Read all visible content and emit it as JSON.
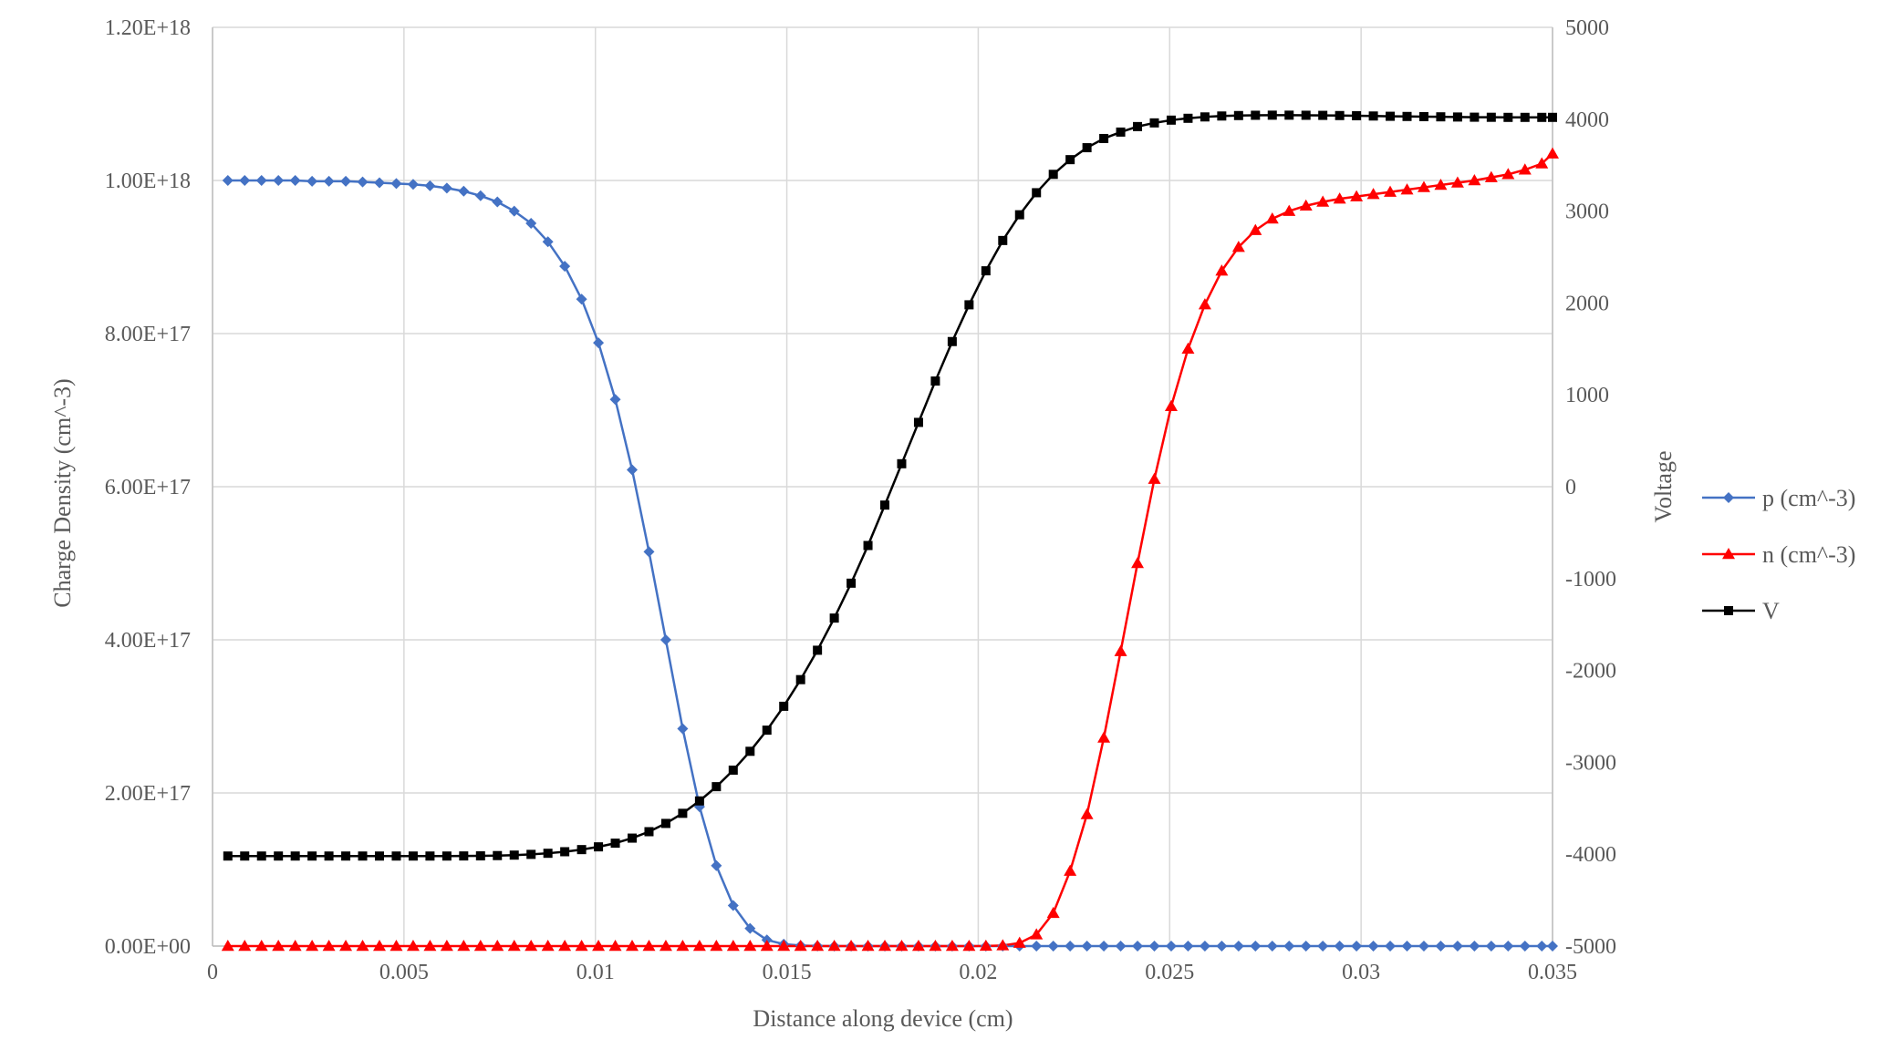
{
  "chart_data": {
    "type": "line",
    "title": "",
    "xlabel": "Distance along device (cm)",
    "ylabel": "Charge Density (cm^-3)",
    "y2label": "Voltage",
    "xlim": [
      0,
      0.035
    ],
    "ylim": [
      0,
      1.2e+18
    ],
    "y2lim": [
      -5000,
      5000
    ],
    "x_ticks": [
      0,
      0.005,
      0.01,
      0.015,
      0.02,
      0.025,
      0.03,
      0.035
    ],
    "x_tick_labels": [
      "0",
      "0.005",
      "0.01",
      "0.015",
      "0.02",
      "0.025",
      "0.03",
      "0.035"
    ],
    "y_ticks": [
      0,
      2e+17,
      4e+17,
      6e+17,
      8e+17,
      1e+18,
      1.2e+18
    ],
    "y_tick_labels": [
      "0.00E+00",
      "2.00E+17",
      "4.00E+17",
      "6.00E+17",
      "8.00E+17",
      "1.00E+18",
      "1.20E+18"
    ],
    "y2_ticks": [
      -5000,
      -4000,
      -3000,
      -2000,
      -1000,
      0,
      1000,
      2000,
      3000,
      4000,
      5000
    ],
    "y2_tick_labels": [
      "-5000",
      "-4000",
      "-3000",
      "-2000",
      "-1000",
      "0",
      "1000",
      "2000",
      "3000",
      "4000",
      "5000"
    ],
    "grid": true,
    "legend_position": "right",
    "x": [
      0.0004,
      0.00084,
      0.00128,
      0.00172,
      0.00216,
      0.0026,
      0.00304,
      0.00348,
      0.00392,
      0.00436,
      0.0048,
      0.00524,
      0.00568,
      0.00612,
      0.00656,
      0.007,
      0.00744,
      0.00788,
      0.00832,
      0.00876,
      0.0092,
      0.00964,
      0.01008,
      0.01052,
      0.01096,
      0.0114,
      0.01184,
      0.01228,
      0.01272,
      0.01316,
      0.0136,
      0.01404,
      0.01448,
      0.01492,
      0.01536,
      0.0158,
      0.01624,
      0.01668,
      0.01712,
      0.01756,
      0.018,
      0.01844,
      0.01888,
      0.01932,
      0.01976,
      0.0202,
      0.02064,
      0.02108,
      0.02152,
      0.02196,
      0.0224,
      0.02284,
      0.02328,
      0.02372,
      0.02416,
      0.0246,
      0.02504,
      0.02548,
      0.02592,
      0.02636,
      0.0268,
      0.02724,
      0.02768,
      0.02812,
      0.02856,
      0.029,
      0.02944,
      0.02988,
      0.03032,
      0.03076,
      0.0312,
      0.03164,
      0.03208,
      0.03252,
      0.03296,
      0.0334,
      0.03384,
      0.03428,
      0.03472,
      0.035
    ],
    "series": [
      {
        "name": "p (cm^-3)",
        "axis": "left",
        "color": "#4472c4",
        "marker": "diamond",
        "values": [
          1e+18,
          1e+18,
          1e+18,
          1e+18,
          1e+18,
          9.99e+17,
          9.99e+17,
          9.99e+17,
          9.98e+17,
          9.97e+17,
          9.96e+17,
          9.95e+17,
          9.93e+17,
          9.9e+17,
          9.86e+17,
          9.8e+17,
          9.72e+17,
          9.6e+17,
          9.44e+17,
          9.2e+17,
          8.88e+17,
          8.45e+17,
          7.88e+17,
          7.14e+17,
          6.22e+17,
          5.15e+17,
          4e+17,
          2.84e+17,
          1.82e+17,
          1.05e+17,
          5.3e+16,
          2.3e+16,
          8000000000000000.0,
          2500000000000000.0,
          700000000000000.0,
          200000000000000.0,
          0,
          0,
          0,
          0,
          0,
          0,
          0,
          0,
          0,
          0,
          0,
          0,
          0,
          0,
          0,
          0,
          0,
          0,
          0,
          0,
          0,
          0,
          0,
          0,
          0,
          0,
          0,
          0,
          0,
          0,
          0,
          0,
          0,
          0,
          0,
          0,
          0,
          0,
          0,
          0,
          0,
          0,
          0,
          0
        ]
      },
      {
        "name": "n (cm^-3)",
        "axis": "left",
        "color": "#ff0000",
        "marker": "triangle",
        "values": [
          0,
          0,
          0,
          0,
          0,
          0,
          0,
          0,
          0,
          0,
          0,
          0,
          0,
          0,
          0,
          0,
          0,
          0,
          0,
          0,
          0,
          0,
          0,
          0,
          0,
          0,
          0,
          0,
          0,
          0,
          0,
          0,
          0,
          0,
          0,
          0,
          0,
          0,
          0,
          0,
          0,
          0,
          0,
          0,
          0,
          100000000000000.0,
          800000000000000.0,
          4000000000000000.0,
          1.5e+16,
          4.3e+16,
          9.8e+16,
          1.72e+17,
          2.72e+17,
          3.85e+17,
          5e+17,
          6.1e+17,
          7.05e+17,
          7.8e+17,
          8.38e+17,
          8.82e+17,
          9.13e+17,
          9.35e+17,
          9.5e+17,
          9.6e+17,
          9.67e+17,
          9.72e+17,
          9.76e+17,
          9.79e+17,
          9.82e+17,
          9.85e+17,
          9.88e+17,
          9.91e+17,
          9.94e+17,
          9.97e+17,
          1e+18,
          1.004e+18,
          1.008e+18,
          1.014e+18,
          1.022e+18,
          1.035e+18
        ]
      },
      {
        "name": "V",
        "axis": "right",
        "color": "#000000",
        "marker": "square",
        "values": [
          -4020,
          -4020,
          -4020,
          -4020,
          -4020,
          -4020,
          -4020,
          -4020,
          -4020,
          -4020,
          -4020,
          -4020,
          -4020,
          -4020,
          -4019,
          -4018,
          -4015,
          -4010,
          -4002,
          -3990,
          -3973,
          -3950,
          -3920,
          -3880,
          -3825,
          -3755,
          -3665,
          -3555,
          -3420,
          -3265,
          -3085,
          -2880,
          -2650,
          -2390,
          -2100,
          -1780,
          -1430,
          -1050,
          -640,
          -200,
          250,
          700,
          1150,
          1580,
          1980,
          2350,
          2680,
          2960,
          3200,
          3400,
          3560,
          3690,
          3790,
          3860,
          3920,
          3960,
          3990,
          4010,
          4025,
          4035,
          4040,
          4043,
          4044,
          4044,
          4043,
          4042,
          4040,
          4038,
          4035,
          4032,
          4030,
          4028,
          4026,
          4024,
          4022,
          4021,
          4020,
          4020,
          4020,
          4020
        ]
      }
    ]
  }
}
